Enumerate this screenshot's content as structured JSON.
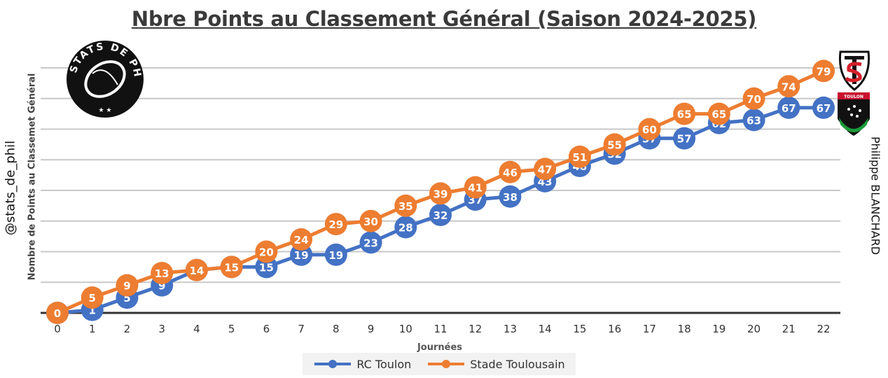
{
  "chart_data": {
    "type": "line",
    "title": "Nbre Points au Classement Général (Saison 2024-2025)",
    "xlabel": "Journées",
    "ylabel": "Nombre de Points au Classemet Général",
    "x": [
      0,
      1,
      2,
      3,
      4,
      5,
      6,
      7,
      8,
      9,
      10,
      11,
      12,
      13,
      14,
      15,
      16,
      17,
      18,
      19,
      20,
      21,
      22
    ],
    "ylim": [
      0,
      80
    ],
    "grid": true,
    "legend": "bottom",
    "data_labels": true,
    "series": [
      {
        "name": "RC Toulon",
        "color": "#4472C4",
        "values": [
          0,
          1,
          5,
          9,
          14,
          15,
          15,
          19,
          19,
          23,
          28,
          32,
          37,
          38,
          43,
          48,
          52,
          57,
          57,
          62,
          63,
          67,
          67
        ]
      },
      {
        "name": "Stade Toulousain",
        "color": "#ED7D31",
        "values": [
          0,
          5,
          9,
          13,
          14,
          15,
          20,
          24,
          29,
          30,
          35,
          39,
          41,
          46,
          47,
          51,
          55,
          60,
          65,
          65,
          70,
          74,
          79
        ]
      }
    ]
  },
  "watermarks": {
    "handle": "@stats_de_phil",
    "author": "Philippe BLANCHARD",
    "logo_text": "STATS DE PHIL",
    "toulon_logo_text": "TOULON"
  }
}
